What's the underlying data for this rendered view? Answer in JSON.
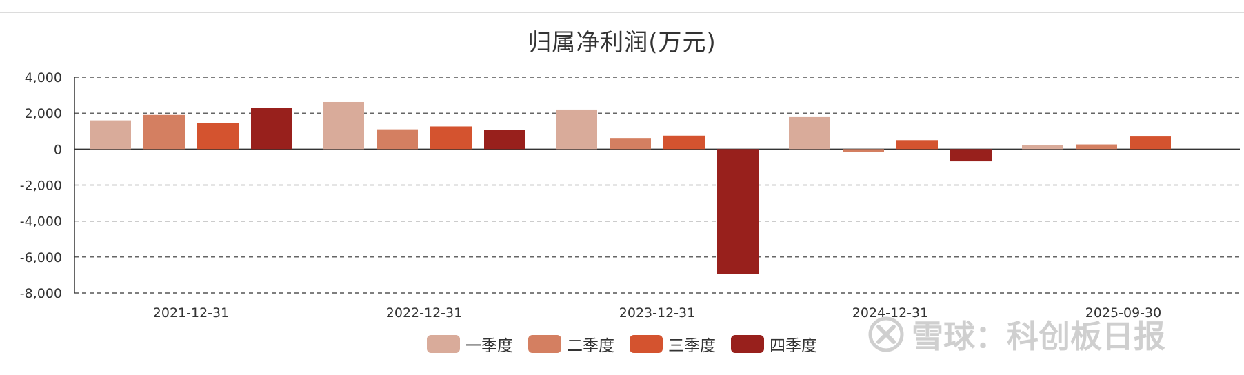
{
  "chart_data": {
    "type": "bar",
    "title": "归属净利润(万元)",
    "xlabel": "",
    "ylabel": "",
    "ylim": [
      -8000,
      4000
    ],
    "yticks": [
      4000,
      2000,
      0,
      -2000,
      -4000,
      -6000,
      -8000
    ],
    "ytick_labels": [
      "4,000",
      "2,000",
      "0",
      "-2,000",
      "-4,000",
      "-6,000",
      "-8,000"
    ],
    "categories": [
      "2021-12-31",
      "2022-12-31",
      "2023-12-31",
      "2024-12-31",
      "2025-09-30"
    ],
    "series": [
      {
        "name": "一季度",
        "color": "#d9ab9a",
        "values": [
          1600,
          2620,
          2200,
          1780,
          230
        ]
      },
      {
        "name": "二季度",
        "color": "#d47f61",
        "values": [
          1900,
          1100,
          620,
          -150,
          260
        ]
      },
      {
        "name": "三季度",
        "color": "#d4532f",
        "values": [
          1450,
          1260,
          750,
          500,
          700
        ]
      },
      {
        "name": "四季度",
        "color": "#98201c",
        "values": [
          2300,
          1060,
          -6950,
          -680,
          null
        ]
      }
    ],
    "grid": true,
    "legend_position": "bottom"
  },
  "watermark": {
    "text": "雪球：科创板日报",
    "icon": "xueqiu-logo-icon"
  }
}
